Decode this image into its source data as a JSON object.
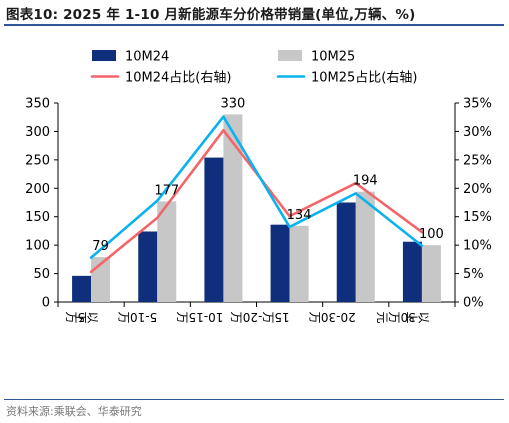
{
  "title": "图表10:  2025 年 1-10 月新能源车分价格带销量(单位,万辆、%)",
  "source": "资料来源:乘联会、华泰研究",
  "colors": {
    "bar_2024": "#0f2f7c",
    "bar_2025": "#c7c7c7",
    "line_2024": "#f2666a",
    "line_2025": "#0ab2ee",
    "rule": "#2e5597",
    "axis": "#000000"
  },
  "chart_data": {
    "type": "bar",
    "categories": [
      "5万以下",
      "5-10万",
      "10-15万",
      "15万-20万",
      "20-30万",
      "30万元以上"
    ],
    "category_display": [
      [
        "5万",
        "以下"
      ],
      [
        "5-10万"
      ],
      [
        "10-15万"
      ],
      [
        "15万-20万"
      ],
      [
        "20-30万"
      ],
      [
        "30万元",
        "以上"
      ]
    ],
    "series": [
      {
        "name": "10M24",
        "kind": "bar",
        "axis": "left",
        "values": [
          46,
          124,
          254,
          136,
          175,
          106
        ]
      },
      {
        "name": "10M25",
        "kind": "bar",
        "axis": "left",
        "values": [
          79,
          177,
          330,
          134,
          194,
          100
        ]
      },
      {
        "name": "10M24占比(右轴)",
        "kind": "line",
        "axis": "right",
        "values": [
          5.3,
          14.8,
          30.2,
          15.1,
          20.9,
          12.3
        ]
      },
      {
        "name": "10M25占比(右轴)",
        "kind": "line",
        "axis": "right",
        "values": [
          7.8,
          17.8,
          32.6,
          13.2,
          19.1,
          9.9
        ]
      }
    ],
    "data_labels": {
      "series": "10M25",
      "values": [
        "79",
        "177",
        "330",
        "134",
        "194",
        "100"
      ]
    },
    "y_left": {
      "min": 0,
      "max": 350,
      "ticks": [
        "0",
        "50",
        "100",
        "150",
        "200",
        "250",
        "300",
        "350"
      ]
    },
    "y_right": {
      "min": 0,
      "max": 35,
      "ticks": [
        "0%",
        "5%",
        "10%",
        "15%",
        "20%",
        "25%",
        "30%",
        "35%"
      ]
    },
    "legend_position": "top",
    "grid": false
  }
}
